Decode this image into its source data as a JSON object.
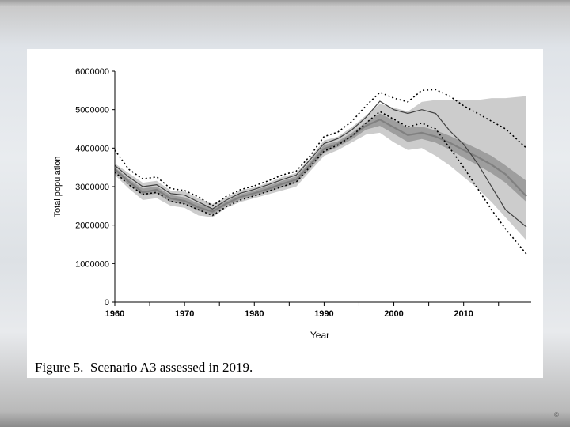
{
  "caption": "Figure 5.  Scenario A3 assessed in 2019.",
  "corner_mark": "©",
  "chart_data": {
    "type": "line",
    "title": "",
    "xlabel": "Year",
    "ylabel": "Total population",
    "xlim": [
      1960,
      2019
    ],
    "ylim": [
      0,
      6000000
    ],
    "x_ticks": [
      1960,
      1970,
      1980,
      1990,
      2000,
      2010
    ],
    "x_minor_ticks": [
      1965,
      1975,
      1985,
      1995,
      2005,
      2015
    ],
    "y_ticks": [
      0,
      1000000,
      2000000,
      3000000,
      4000000,
      5000000,
      6000000
    ],
    "grid": false,
    "colors": {
      "band_outer": "#cccccc",
      "band_inner": "#9e9e9e",
      "median": "#808080",
      "dark_line": "#404040",
      "dotted": "#000000"
    },
    "series": [
      {
        "name": "outer_band_upper",
        "role": "band-upper",
        "x": [
          1960,
          1962,
          1964,
          1966,
          1968,
          1970,
          1972,
          1974,
          1976,
          1978,
          1980,
          1982,
          1984,
          1986,
          1988,
          1990,
          1992,
          1994,
          1996,
          1998,
          2000,
          2002,
          2004,
          2006,
          2008,
          2010,
          2012,
          2014,
          2016,
          2019
        ],
        "values": [
          3600000,
          3350000,
          3100000,
          3150000,
          2900000,
          2870000,
          2700000,
          2550000,
          2720000,
          2900000,
          2980000,
          3100000,
          3250000,
          3350000,
          3750000,
          4200000,
          4300000,
          4550000,
          4850000,
          5150000,
          5050000,
          4950000,
          5200000,
          5250000,
          5250000,
          5250000,
          5250000,
          5300000,
          5300000,
          5350000
        ]
      },
      {
        "name": "outer_band_lower",
        "role": "band-lower",
        "x": [
          1960,
          1962,
          1964,
          1966,
          1968,
          1970,
          1972,
          1974,
          1976,
          1978,
          1980,
          1982,
          1984,
          1986,
          1988,
          1990,
          1992,
          1994,
          1996,
          1998,
          2000,
          2002,
          2004,
          2006,
          2008,
          2010,
          2012,
          2014,
          2016,
          2019
        ],
        "values": [
          3300000,
          2950000,
          2650000,
          2700000,
          2500000,
          2450000,
          2250000,
          2200000,
          2450000,
          2600000,
          2700000,
          2800000,
          2900000,
          3000000,
          3400000,
          3800000,
          3950000,
          4150000,
          4350000,
          4400000,
          4150000,
          3950000,
          4000000,
          3800000,
          3550000,
          3250000,
          2950000,
          2600000,
          2200000,
          1600000
        ]
      },
      {
        "name": "inner_band_upper",
        "role": "band-upper",
        "x": [
          1960,
          1962,
          1964,
          1966,
          1968,
          1970,
          1972,
          1974,
          1976,
          1978,
          1980,
          1982,
          1984,
          1986,
          1988,
          1990,
          1992,
          1994,
          1996,
          1998,
          2000,
          2002,
          2004,
          2006,
          2008,
          2010,
          2012,
          2014,
          2016,
          2019
        ],
        "values": [
          3500000,
          3200000,
          2950000,
          3000000,
          2780000,
          2720000,
          2560000,
          2430000,
          2620000,
          2800000,
          2900000,
          3020000,
          3150000,
          3260000,
          3650000,
          4080000,
          4180000,
          4400000,
          4680000,
          4900000,
          4720000,
          4530000,
          4560000,
          4460000,
          4320000,
          4150000,
          3980000,
          3800000,
          3550000,
          3150000
        ]
      },
      {
        "name": "inner_band_lower",
        "role": "band-lower",
        "x": [
          1960,
          1962,
          1964,
          1966,
          1968,
          1970,
          1972,
          1974,
          1976,
          1978,
          1980,
          1982,
          1984,
          1986,
          1988,
          1990,
          1992,
          1994,
          1996,
          1998,
          2000,
          2002,
          2004,
          2006,
          2008,
          2010,
          2012,
          2014,
          2016,
          2019
        ],
        "values": [
          3370000,
          3050000,
          2770000,
          2820000,
          2600000,
          2540000,
          2370000,
          2280000,
          2500000,
          2660000,
          2760000,
          2860000,
          2980000,
          3090000,
          3470000,
          3880000,
          4030000,
          4230000,
          4480000,
          4580000,
          4370000,
          4160000,
          4240000,
          4140000,
          3960000,
          3750000,
          3560000,
          3350000,
          3100000,
          2600000
        ]
      },
      {
        "name": "median",
        "role": "line-thick",
        "x": [
          1960,
          1962,
          1964,
          1966,
          1968,
          1970,
          1972,
          1974,
          1976,
          1978,
          1980,
          1982,
          1984,
          1986,
          1988,
          1990,
          1992,
          1994,
          1996,
          1998,
          2000,
          2002,
          2004,
          2006,
          2008,
          2010,
          2012,
          2014,
          2016,
          2019
        ],
        "values": [
          3450000,
          3130000,
          2850000,
          2920000,
          2690000,
          2630000,
          2460000,
          2350000,
          2560000,
          2730000,
          2830000,
          2940000,
          3070000,
          3180000,
          3570000,
          3980000,
          4110000,
          4320000,
          4580000,
          4740000,
          4540000,
          4340000,
          4400000,
          4300000,
          4140000,
          3950000,
          3770000,
          3570000,
          3320000,
          2750000
        ]
      },
      {
        "name": "trajectory",
        "role": "line-thin",
        "x": [
          1960,
          1962,
          1964,
          1966,
          1968,
          1970,
          1972,
          1974,
          1976,
          1978,
          1980,
          1982,
          1984,
          1986,
          1988,
          1990,
          1992,
          1994,
          1996,
          1998,
          2000,
          2002,
          2004,
          2006,
          2008,
          2010,
          2012,
          2014,
          2016,
          2019
        ],
        "values": [
          3550000,
          3250000,
          3000000,
          3050000,
          2820000,
          2780000,
          2600000,
          2420000,
          2650000,
          2830000,
          2930000,
          3050000,
          3180000,
          3300000,
          3700000,
          4120000,
          4250000,
          4480000,
          4800000,
          5220000,
          5000000,
          4900000,
          5000000,
          4900000,
          4450000,
          4100000,
          3600000,
          3000000,
          2400000,
          1950000
        ]
      },
      {
        "name": "dotted_upper",
        "role": "line-dotted",
        "x": [
          1960,
          1962,
          1964,
          1966,
          1968,
          1970,
          1972,
          1974,
          1976,
          1978,
          1980,
          1982,
          1984,
          1986,
          1988,
          1990,
          1992,
          1994,
          1996,
          1998,
          2000,
          2002,
          2004,
          2006,
          2008,
          2010,
          2012,
          2014,
          2016,
          2019
        ],
        "values": [
          3950000,
          3450000,
          3200000,
          3250000,
          2950000,
          2900000,
          2730000,
          2500000,
          2750000,
          2920000,
          3020000,
          3150000,
          3300000,
          3400000,
          3800000,
          4300000,
          4420000,
          4700000,
          5100000,
          5450000,
          5300000,
          5200000,
          5500000,
          5520000,
          5350000,
          5100000,
          4900000,
          4700000,
          4500000,
          4000000
        ]
      },
      {
        "name": "dotted_lower",
        "role": "line-dotted",
        "x": [
          1960,
          1962,
          1964,
          1966,
          1968,
          1970,
          1972,
          1974,
          1976,
          1978,
          1980,
          1982,
          1984,
          1986,
          1988,
          1990,
          1992,
          1994,
          1996,
          1998,
          2000,
          2002,
          2004,
          2006,
          2008,
          2010,
          2012,
          2014,
          2016,
          2019
        ],
        "values": [
          3380000,
          3050000,
          2800000,
          2850000,
          2620000,
          2550000,
          2400000,
          2250000,
          2480000,
          2650000,
          2760000,
          2880000,
          3000000,
          3120000,
          3520000,
          3920000,
          4080000,
          4320000,
          4650000,
          4950000,
          4750000,
          4550000,
          4650000,
          4500000,
          4000000,
          3500000,
          2950000,
          2400000,
          1900000,
          1250000
        ]
      }
    ]
  }
}
